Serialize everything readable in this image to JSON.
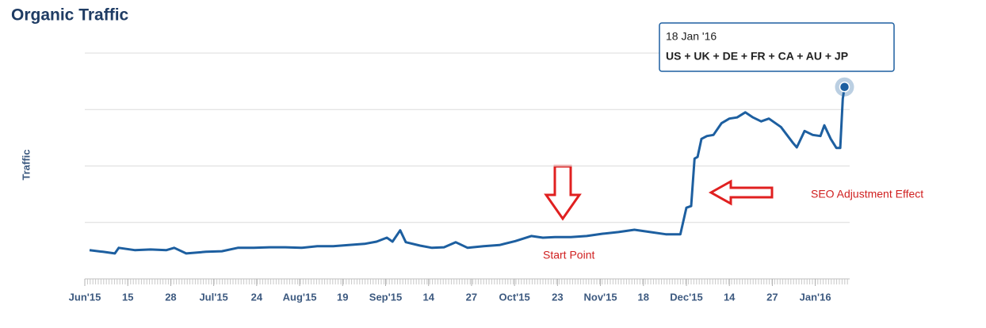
{
  "chart_data": {
    "type": "line",
    "title": "Organic Traffic",
    "y_label": "Traffic",
    "tooltip_label": "18 Jan '16",
    "annotations": [
      "Start Point",
      "SEO Adjustment Effect"
    ],
    "x": [
      0.11,
      0.42,
      0.7,
      0.79,
      1.16,
      1.53,
      1.9,
      2.08,
      2.36,
      2.82,
      3.19,
      3.56,
      3.93,
      4.3,
      4.67,
      5.04,
      5.41,
      5.78,
      6.14,
      6.51,
      6.79,
      7.03,
      7.16,
      7.34,
      7.47,
      7.8,
      8.08,
      8.36,
      8.63,
      8.91,
      9.28,
      9.65,
      10.02,
      10.39,
      10.66,
      10.94,
      11.31,
      11.68,
      12.05,
      12.42,
      12.79,
      13.16,
      13.52,
      13.86,
      14.0,
      14.11,
      14.19,
      14.26,
      14.35,
      14.48,
      14.63,
      14.82,
      15.0,
      15.18,
      15.37,
      15.55,
      15.74,
      15.92,
      16.2,
      16.48,
      16.57,
      16.75,
      16.94,
      17.12,
      17.21,
      17.36,
      17.49,
      17.58,
      17.64,
      17.68
    ],
    "series": [
      {
        "name": "US + UK + DE + FR + CA + AU + JP",
        "color": "#1d5fa0",
        "values": [
          0.51,
          0.48,
          0.45,
          0.55,
          0.51,
          0.52,
          0.51,
          0.55,
          0.45,
          0.48,
          0.49,
          0.55,
          0.55,
          0.56,
          0.56,
          0.55,
          0.58,
          0.58,
          0.6,
          0.62,
          0.66,
          0.73,
          0.66,
          0.86,
          0.65,
          0.59,
          0.55,
          0.56,
          0.65,
          0.55,
          0.58,
          0.6,
          0.67,
          0.76,
          0.73,
          0.74,
          0.74,
          0.76,
          0.8,
          0.83,
          0.87,
          0.83,
          0.79,
          0.79,
          1.26,
          1.29,
          2.13,
          2.16,
          2.48,
          2.53,
          2.55,
          2.76,
          2.84,
          2.86,
          2.95,
          2.86,
          2.79,
          2.84,
          2.69,
          2.41,
          2.33,
          2.62,
          2.55,
          2.53,
          2.72,
          2.48,
          2.32,
          2.32,
          3.19,
          3.4
        ]
      }
    ],
    "xlim": [
      0,
      17.8
    ],
    "xticks": [
      {
        "value": 0,
        "label": "Jun'15"
      },
      {
        "value": 1,
        "label": "15"
      },
      {
        "value": 2,
        "label": "28"
      },
      {
        "value": 3,
        "label": "Jul'15"
      },
      {
        "value": 4,
        "label": "24"
      },
      {
        "value": 5,
        "label": "Aug'15"
      },
      {
        "value": 6,
        "label": "19"
      },
      {
        "value": 7,
        "label": "Sep'15"
      },
      {
        "value": 8,
        "label": "14"
      },
      {
        "value": 9,
        "label": "27"
      },
      {
        "value": 10,
        "label": "Oct'15"
      },
      {
        "value": 11,
        "label": "23"
      },
      {
        "value": 12,
        "label": "Nov'15"
      },
      {
        "value": 13,
        "label": "18"
      },
      {
        "value": 14,
        "label": "Dec'15"
      },
      {
        "value": 15,
        "label": "14"
      },
      {
        "value": 16,
        "label": "27"
      },
      {
        "value": 17,
        "label": "Jan'16"
      }
    ],
    "ylim": [
      0,
      4
    ],
    "yticks": [
      0,
      1,
      2,
      3,
      4
    ],
    "grid": true
  }
}
